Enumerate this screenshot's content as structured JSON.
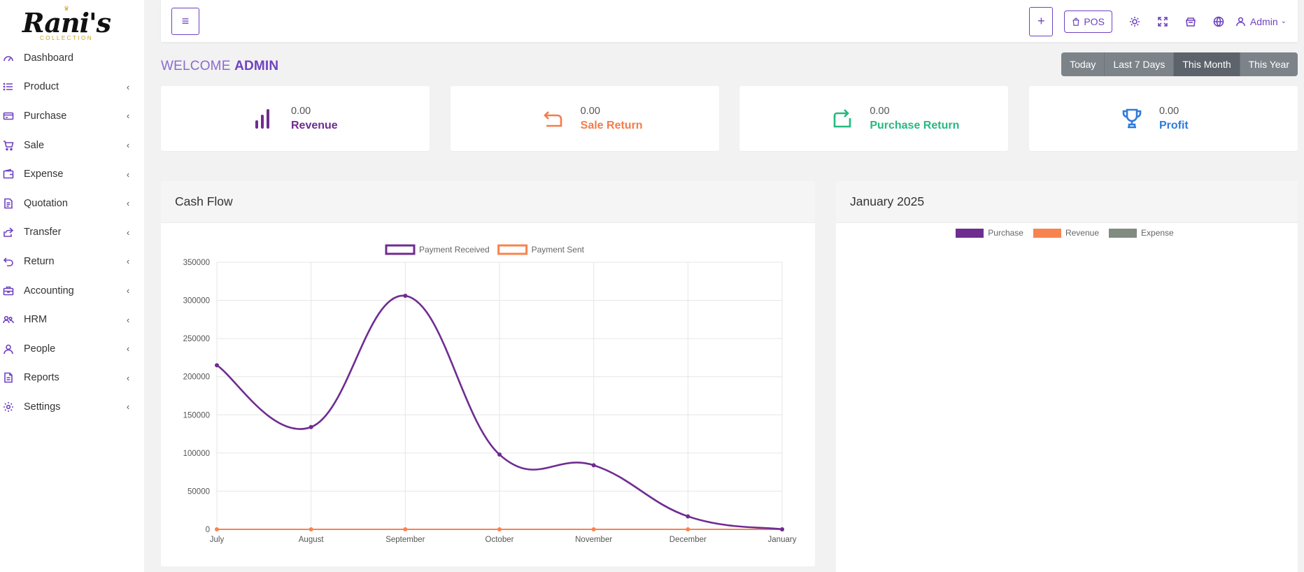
{
  "brand": {
    "name": "Rani's",
    "sub": "COLLECTION"
  },
  "sidebar": {
    "items": [
      {
        "label": "Dashboard",
        "icon": "gauge-icon",
        "has_children": false
      },
      {
        "label": "Product",
        "icon": "list-icon",
        "has_children": true
      },
      {
        "label": "Purchase",
        "icon": "credit-card-icon",
        "has_children": true
      },
      {
        "label": "Sale",
        "icon": "cart-icon",
        "has_children": true
      },
      {
        "label": "Expense",
        "icon": "wallet-icon",
        "has_children": true
      },
      {
        "label": "Quotation",
        "icon": "document-icon",
        "has_children": true
      },
      {
        "label": "Transfer",
        "icon": "share-icon",
        "has_children": true
      },
      {
        "label": "Return",
        "icon": "return-icon",
        "has_children": true
      },
      {
        "label": "Accounting",
        "icon": "briefcase-icon",
        "has_children": true
      },
      {
        "label": "HRM",
        "icon": "users-icon",
        "has_children": true
      },
      {
        "label": "People",
        "icon": "user-icon",
        "has_children": true
      },
      {
        "label": "Reports",
        "icon": "report-icon",
        "has_children": true
      },
      {
        "label": "Settings",
        "icon": "gear-icon",
        "has_children": true
      }
    ],
    "chevron": "‹"
  },
  "topbar": {
    "menu_icon": "≡",
    "plus_label": "+",
    "pos_label": "POS",
    "user_label": "Admin",
    "caret": "⌄"
  },
  "welcome": {
    "prefix": "WELCOME",
    "name": "ADMIN"
  },
  "date_ranges": [
    {
      "label": "Today",
      "active": false
    },
    {
      "label": "Last 7 Days",
      "active": false
    },
    {
      "label": "This Month",
      "active": true
    },
    {
      "label": "This Year",
      "active": false
    }
  ],
  "stats": [
    {
      "value": "0.00",
      "label": "Revenue",
      "color": "#6f2c91",
      "icon": "bar-chart-icon"
    },
    {
      "value": "0.00",
      "label": "Sale Return",
      "color": "#f47c4a",
      "icon": "return-arrow-icon"
    },
    {
      "value": "0.00",
      "label": "Purchase Return",
      "color": "#26b97f",
      "icon": "loop-arrow-icon"
    },
    {
      "value": "0.00",
      "label": "Profit",
      "color": "#2f7bdc",
      "icon": "trophy-icon"
    }
  ],
  "cash_flow": {
    "title": "Cash Flow"
  },
  "monthly": {
    "title": "January 2025",
    "legend": [
      {
        "name": "Purchase",
        "color": "#6f2c91"
      },
      {
        "name": "Revenue",
        "color": "#f7844f"
      },
      {
        "name": "Expense",
        "color": "#7f8c7f"
      }
    ]
  },
  "chart_data": [
    {
      "type": "line",
      "title": "Cash Flow",
      "categories": [
        "July",
        "August",
        "September",
        "October",
        "November",
        "December",
        "January"
      ],
      "series": [
        {
          "name": "Payment Received",
          "color": "#6f2c91",
          "values": [
            215000,
            134000,
            306000,
            98000,
            84000,
            17000,
            0
          ]
        },
        {
          "name": "Payment Sent",
          "color": "#f7844f",
          "values": [
            0,
            0,
            0,
            0,
            0,
            0,
            0
          ]
        }
      ],
      "ylim": [
        0,
        350000
      ],
      "yticks": [
        0,
        50000,
        100000,
        150000,
        200000,
        250000,
        300000,
        350000
      ],
      "grid": true,
      "legend": "top"
    },
    {
      "type": "bar",
      "title": "January 2025",
      "series": [
        {
          "name": "Purchase",
          "values": []
        },
        {
          "name": "Revenue",
          "values": []
        },
        {
          "name": "Expense",
          "values": []
        }
      ],
      "legend": "top"
    }
  ]
}
